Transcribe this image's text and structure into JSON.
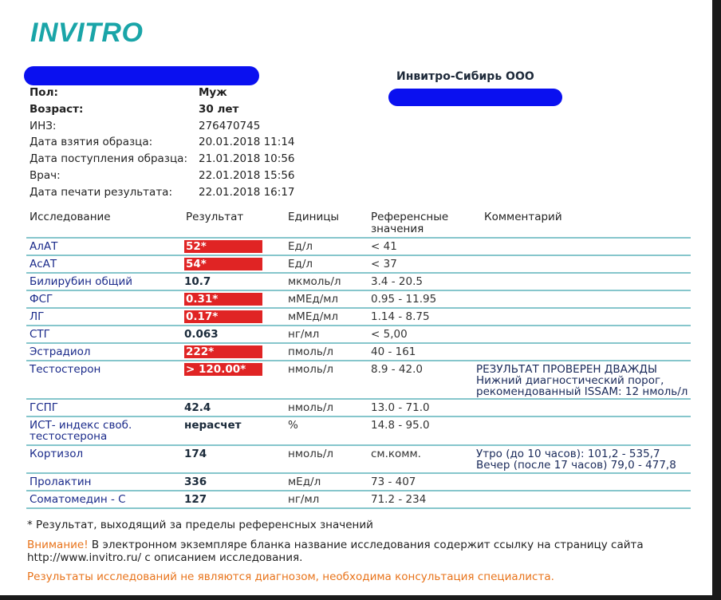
{
  "logo": "INVITRO",
  "organization": "Инвитро-Сибирь ООО",
  "patient": [
    {
      "label": "Пол:",
      "value": "Муж",
      "bold": true
    },
    {
      "label": "Возраст:",
      "value": "30 лет",
      "bold": true
    },
    {
      "label": "ИНЗ:",
      "value": "276470745"
    },
    {
      "label": "Дата взятия образца:",
      "value": "20.01.2018 11:14"
    },
    {
      "label": "Дата поступления образца:",
      "value": "21.01.2018 10:56"
    },
    {
      "label": "Врач:",
      "value": "22.01.2018 15:56"
    },
    {
      "label": "Дата печати результата:",
      "value": "22.01.2018 16:17"
    }
  ],
  "table": {
    "headers": {
      "test": "Исследование",
      "result": "Результат",
      "units": "Единицы",
      "ref1": "Референсные",
      "ref2": "значения",
      "comment": "Комментарий"
    },
    "rows": [
      {
        "name": "АлАТ",
        "result": "52*",
        "flag": true,
        "units": "Ед/л",
        "ref": "< 41",
        "comment": ""
      },
      {
        "name": "АсАТ",
        "result": "54*",
        "flag": true,
        "units": "Ед/л",
        "ref": "< 37",
        "comment": ""
      },
      {
        "name": "Билирубин общий",
        "result": "10.7",
        "flag": false,
        "units": "мкмоль/л",
        "ref": "3.4 - 20.5",
        "comment": ""
      },
      {
        "name": "ФСГ",
        "result": "0.31*",
        "flag": true,
        "units": "мМЕд/мл",
        "ref": "0.95 - 11.95",
        "comment": ""
      },
      {
        "name": "ЛГ",
        "result": "0.17*",
        "flag": true,
        "units": "мМЕд/мл",
        "ref": "1.14 - 8.75",
        "comment": ""
      },
      {
        "name": "СТГ",
        "result": "0.063",
        "flag": false,
        "units": "нг/мл",
        "ref": "< 5,00",
        "comment": ""
      },
      {
        "name": "Эстрадиол",
        "result": "222*",
        "flag": true,
        "units": "пмоль/л",
        "ref": "40 - 161",
        "comment": ""
      },
      {
        "name": "Тестостерон",
        "result": "> 120.00*",
        "flag": true,
        "units": "нмоль/л",
        "ref": "8.9 - 42.0",
        "comment": "РЕЗУЛЬТАТ ПРОВЕРЕН ДВАЖДЫ\nНижний диагностический порог,\nрекомендованный ISSAM: 12 нмоль/л"
      },
      {
        "name": "ГСПГ",
        "result": "42.4",
        "flag": false,
        "units": "нмоль/л",
        "ref": "13.0 - 71.0",
        "comment": ""
      },
      {
        "name": "ИСТ- индекс своб.\nтестостерона",
        "result": "нерасчет",
        "flag": false,
        "units": "%",
        "ref": "14.8 - 95.0",
        "comment": ""
      },
      {
        "name": "Кортизол",
        "result": "174",
        "flag": false,
        "units": "нмоль/л",
        "ref": "см.комм.",
        "comment": "Утро (до 10 часов): 101,2 - 535,7\nВечер (после 17 часов) 79,0 - 477,8"
      },
      {
        "name": "Пролактин",
        "result": "336",
        "flag": false,
        "units": "мЕд/л",
        "ref": "73 - 407",
        "comment": ""
      },
      {
        "name": "Соматомедин - С",
        "result": "127",
        "flag": false,
        "units": "нг/мл",
        "ref": "71.2 - 234",
        "comment": ""
      }
    ]
  },
  "footnote": "* Результат, выходящий за пределы референсных значений",
  "attention_label": "Внимание!",
  "attention_text": " В электронном экземпляре бланка название исследования содержит ссылку на страницу сайта",
  "attention_text2": "http://www.invitro.ru/ с описанием исследования.",
  "disclaimer": "Результаты исследований не являются диагнозом, необходима консультация специалиста.",
  "colors": {
    "accent": "#1aa5a8",
    "flag": "#e02424",
    "line": "#86c6cc",
    "warning": "#e8731a"
  }
}
